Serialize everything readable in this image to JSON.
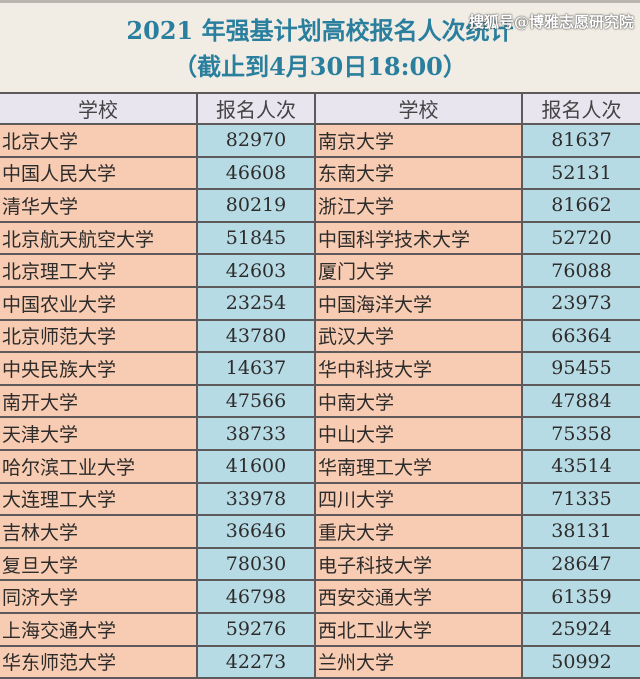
{
  "title": "2021 年强基计划高校报名人次统计",
  "subtitle": "（截止到4月30日18:00）",
  "watermark": "搜狐号@博雅志愿研究院",
  "colors": {
    "title": "#2a7f9e",
    "name_cell": "#f7ccb2",
    "number_cell": "#b6dbe5",
    "header": "#e9e5ef"
  },
  "headers": [
    "学校",
    "报名人次",
    "学校",
    "报名人次"
  ],
  "rows": [
    [
      "北京大学",
      "82970",
      "南京大学",
      "81637"
    ],
    [
      "中国人民大学",
      "46608",
      "东南大学",
      "52131"
    ],
    [
      "清华大学",
      "80219",
      "浙江大学",
      "81662"
    ],
    [
      "北京航天航空大学",
      "51845",
      "中国科学技术大学",
      "52720"
    ],
    [
      "北京理工大学",
      "42603",
      "厦门大学",
      "76088"
    ],
    [
      "中国农业大学",
      "23254",
      "中国海洋大学",
      "23973"
    ],
    [
      "北京师范大学",
      "43780",
      "武汉大学",
      "66364"
    ],
    [
      "中央民族大学",
      "14637",
      "华中科技大学",
      "95455"
    ],
    [
      "南开大学",
      "47566",
      "中南大学",
      "47884"
    ],
    [
      "天津大学",
      "38733",
      "中山大学",
      "75358"
    ],
    [
      "哈尔滨工业大学",
      "41600",
      "华南理工大学",
      "43514"
    ],
    [
      "大连理工大学",
      "33978",
      "四川大学",
      "71335"
    ],
    [
      "吉林大学",
      "36646",
      "重庆大学",
      "38131"
    ],
    [
      "复旦大学",
      "78030",
      "电子科技大学",
      "28647"
    ],
    [
      "同济大学",
      "46798",
      "西安交通大学",
      "61359"
    ],
    [
      "上海交通大学",
      "59276",
      "西北工业大学",
      "25924"
    ],
    [
      "华东师范大学",
      "42273",
      "兰州大学",
      "50992"
    ]
  ]
}
